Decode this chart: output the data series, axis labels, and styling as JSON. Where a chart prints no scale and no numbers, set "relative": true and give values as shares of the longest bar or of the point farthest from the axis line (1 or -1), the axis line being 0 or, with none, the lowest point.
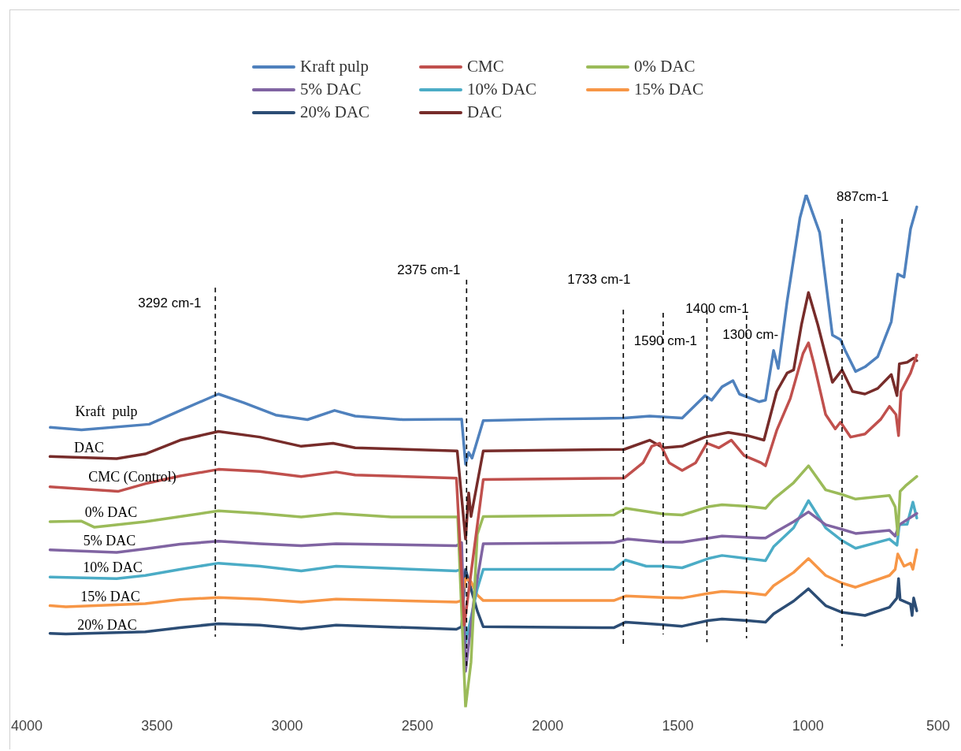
{
  "chart_data": {
    "type": "line",
    "relative": true,
    "xlim": [
      4000,
      500
    ],
    "xticks": [
      4000,
      3500,
      3000,
      2500,
      2000,
      1500,
      1000,
      500
    ],
    "grid": false,
    "legend": "top",
    "marker": "none",
    "line_style": "solid",
    "series": [
      {
        "name": "Kraft pulp",
        "color": "#4f81bd",
        "x": [
          3910,
          3790,
          3530,
          3410,
          3264,
          3166,
          3044,
          2922,
          2818,
          2739,
          2555,
          2330,
          2315,
          2303,
          2290,
          2247,
          2000,
          1706,
          1608,
          1483,
          1395,
          1370,
          1330,
          1288,
          1263,
          1187,
          1163,
          1132,
          1114,
          1080,
          1031,
          1007,
          982,
          955,
          906,
          875,
          857,
          817,
          781,
          732,
          680,
          655,
          631,
          606,
          582
        ],
        "values": [
          0.546,
          0.541,
          0.552,
          0.579,
          0.611,
          0.594,
          0.57,
          0.561,
          0.579,
          0.568,
          0.561,
          0.562,
          0.474,
          0.497,
          0.486,
          0.559,
          0.562,
          0.564,
          0.568,
          0.564,
          0.608,
          0.599,
          0.625,
          0.637,
          0.611,
          0.596,
          0.599,
          0.696,
          0.661,
          0.792,
          0.954,
          1,
          0.964,
          0.926,
          0.726,
          0.717,
          0.696,
          0.655,
          0.664,
          0.684,
          0.752,
          0.845,
          0.839,
          0.933,
          0.976
        ]
      },
      {
        "name": "CMC",
        "color": "#c0504d",
        "x": [
          3911,
          3650,
          3545,
          3411,
          3264,
          3105,
          2946,
          2812,
          2739,
          2350,
          2320,
          2247,
          1706,
          1633,
          1600,
          1569,
          1533,
          1483,
          1431,
          1388,
          1342,
          1294,
          1245,
          1181,
          1163,
          1120,
          1068,
          1019,
          998,
          977,
          932,
          895,
          875,
          836,
          781,
          720,
          687,
          662,
          652,
          643,
          606,
          582
        ],
        "values": [
          0.43,
          0.421,
          0.436,
          0.451,
          0.464,
          0.46,
          0.45,
          0.459,
          0.453,
          0.447,
          0.16,
          0.444,
          0.447,
          0.477,
          0.509,
          0.515,
          0.477,
          0.462,
          0.477,
          0.515,
          0.506,
          0.521,
          0.491,
          0.477,
          0.471,
          0.54,
          0.602,
          0.69,
          0.711,
          0.67,
          0.571,
          0.543,
          0.556,
          0.527,
          0.533,
          0.562,
          0.587,
          0.571,
          0.53,
          0.616,
          0.652,
          0.687
        ]
      },
      {
        "name": "0% DAC",
        "color": "#9bbb59",
        "x": [
          3911,
          3790,
          3740,
          3545,
          3411,
          3264,
          3105,
          2946,
          2812,
          2600,
          2345,
          2315,
          2294,
          2270,
          2247,
          1746,
          1700,
          1556,
          1483,
          1383,
          1330,
          1233,
          1163,
          1132,
          1055,
          998,
          932,
          869,
          817,
          687,
          665,
          655,
          646,
          625,
          582
        ],
        "values": [
          0.362,
          0.363,
          0.351,
          0.362,
          0.372,
          0.383,
          0.378,
          0.371,
          0.378,
          0.371,
          0.371,
          0,
          0.088,
          0.337,
          0.372,
          0.375,
          0.388,
          0.377,
          0.375,
          0.391,
          0.395,
          0.392,
          0.388,
          0.406,
          0.438,
          0.471,
          0.424,
          0.415,
          0.406,
          0.413,
          0.391,
          0.337,
          0.421,
          0.432,
          0.45
        ]
      },
      {
        "name": "5% DAC",
        "color": "#8064a2",
        "x": [
          3911,
          3655,
          3545,
          3411,
          3264,
          3105,
          2946,
          2812,
          2350,
          2330,
          2315,
          2282,
          2247,
          1746,
          1692,
          1556,
          1483,
          1330,
          1181,
          1163,
          1120,
          1055,
          998,
          932,
          869,
          817,
          687,
          665,
          649,
          582
        ],
        "values": [
          0.307,
          0.302,
          0.309,
          0.318,
          0.324,
          0.319,
          0.315,
          0.319,
          0.315,
          0.321,
          0.07,
          0.213,
          0.319,
          0.321,
          0.328,
          0.322,
          0.322,
          0.334,
          0.33,
          0.33,
          0.343,
          0.362,
          0.381,
          0.356,
          0.347,
          0.339,
          0.345,
          0.334,
          0.356,
          0.378
        ]
      },
      {
        "name": "10% DAC",
        "color": "#4bacc6",
        "x": [
          3911,
          3655,
          3545,
          3411,
          3264,
          3105,
          2946,
          2812,
          2350,
          2330,
          2315,
          2270,
          2247,
          1746,
          1700,
          1621,
          1556,
          1483,
          1383,
          1330,
          1233,
          1163,
          1132,
          1055,
          998,
          932,
          869,
          817,
          687,
          658,
          649,
          619,
          597,
          582
        ],
        "values": [
          0.254,
          0.251,
          0.257,
          0.269,
          0.281,
          0.275,
          0.266,
          0.275,
          0.266,
          0.269,
          0.126,
          0.231,
          0.269,
          0.269,
          0.287,
          0.275,
          0.275,
          0.272,
          0.29,
          0.296,
          0.29,
          0.286,
          0.313,
          0.35,
          0.403,
          0.35,
          0.325,
          0.31,
          0.328,
          0.316,
          0.356,
          0.357,
          0.4,
          0.369
        ]
      },
      {
        "name": "15% DAC",
        "color": "#f79646",
        "x": [
          3911,
          3850,
          3545,
          3411,
          3264,
          3105,
          2946,
          2812,
          2350,
          2330,
          2315,
          2294,
          2270,
          2247,
          1746,
          1700,
          1556,
          1483,
          1383,
          1330,
          1233,
          1163,
          1132,
          1055,
          998,
          932,
          869,
          817,
          687,
          665,
          655,
          631,
          606,
          597,
          582
        ],
        "values": [
          0.198,
          0.196,
          0.202,
          0.21,
          0.214,
          0.211,
          0.205,
          0.211,
          0.205,
          0.208,
          0.251,
          0.245,
          0.219,
          0.208,
          0.208,
          0.217,
          0.214,
          0.213,
          0.222,
          0.226,
          0.223,
          0.219,
          0.237,
          0.263,
          0.29,
          0.257,
          0.242,
          0.234,
          0.257,
          0.269,
          0.299,
          0.275,
          0.281,
          0.269,
          0.307
        ]
      },
      {
        "name": "20% DAC",
        "color": "#2c4d75",
        "x": [
          3911,
          3850,
          3545,
          3411,
          3264,
          3105,
          2946,
          2812,
          2350,
          2330,
          2315,
          2294,
          2270,
          2247,
          1746,
          1700,
          1556,
          1483,
          1383,
          1330,
          1233,
          1163,
          1132,
          1055,
          998,
          932,
          869,
          781,
          687,
          658,
          652,
          646,
          606,
          600,
          594,
          582
        ],
        "values": [
          0.144,
          0.143,
          0.147,
          0.155,
          0.163,
          0.16,
          0.153,
          0.16,
          0.152,
          0.157,
          0.269,
          0.231,
          0.188,
          0.157,
          0.155,
          0.166,
          0.161,
          0.158,
          0.169,
          0.172,
          0.169,
          0.166,
          0.182,
          0.207,
          0.231,
          0.198,
          0.185,
          0.179,
          0.195,
          0.213,
          0.251,
          0.21,
          0.201,
          0.179,
          0.213,
          0.188
        ]
      },
      {
        "name": "DAC",
        "color": "#772c2a",
        "x": [
          3911,
          3655,
          3545,
          3411,
          3264,
          3105,
          2946,
          2824,
          2739,
          2347,
          2315,
          2303,
          2294,
          2247,
          1706,
          1608,
          1556,
          1483,
          1395,
          1306,
          1233,
          1169,
          1120,
          1080,
          1055,
          1025,
          998,
          962,
          906,
          869,
          829,
          781,
          732,
          680,
          658,
          649,
          619,
          594,
          582
        ],
        "values": [
          0.489,
          0.485,
          0.494,
          0.521,
          0.538,
          0.527,
          0.509,
          0.515,
          0.506,
          0.5,
          0.328,
          0.418,
          0.372,
          0.5,
          0.503,
          0.521,
          0.506,
          0.509,
          0.527,
          0.536,
          0.53,
          0.521,
          0.616,
          0.652,
          0.658,
          0.746,
          0.809,
          0.746,
          0.634,
          0.658,
          0.616,
          0.611,
          0.622,
          0.649,
          0.608,
          0.67,
          0.673,
          0.681,
          0.676
        ]
      }
    ],
    "annotations": [
      "Kraft  pulp",
      "DAC",
      "CMC (Control)",
      "0% DAC",
      "5% DAC",
      "10% DAC",
      "15% DAC",
      "20% DAC"
    ],
    "ref_lines": [
      {
        "axis": "x",
        "value": 3276,
        "label": "3292 cm-1",
        "color": "#000000",
        "line_style": "dashed"
      },
      {
        "axis": "x",
        "value": 2311,
        "label": "2375 cm-1",
        "color": "#000000",
        "line_style": "dashed"
      },
      {
        "axis": "x",
        "value": 1709,
        "label": "1733 cm-1",
        "color": "#000000",
        "line_style": "dashed"
      },
      {
        "axis": "x",
        "value": 1556,
        "label": "1590 cm-1",
        "color": "#000000",
        "line_style": "dashed"
      },
      {
        "axis": "x",
        "value": 1388,
        "label": "1400 cm-1",
        "color": "#000000",
        "line_style": "dashed"
      },
      {
        "axis": "x",
        "value": 1236,
        "label": "1300 cm-",
        "color": "#000000",
        "line_style": "dashed"
      },
      {
        "axis": "x",
        "value": 869,
        "label": "887cm-1",
        "color": "#000000",
        "line_style": "dashed"
      }
    ]
  }
}
